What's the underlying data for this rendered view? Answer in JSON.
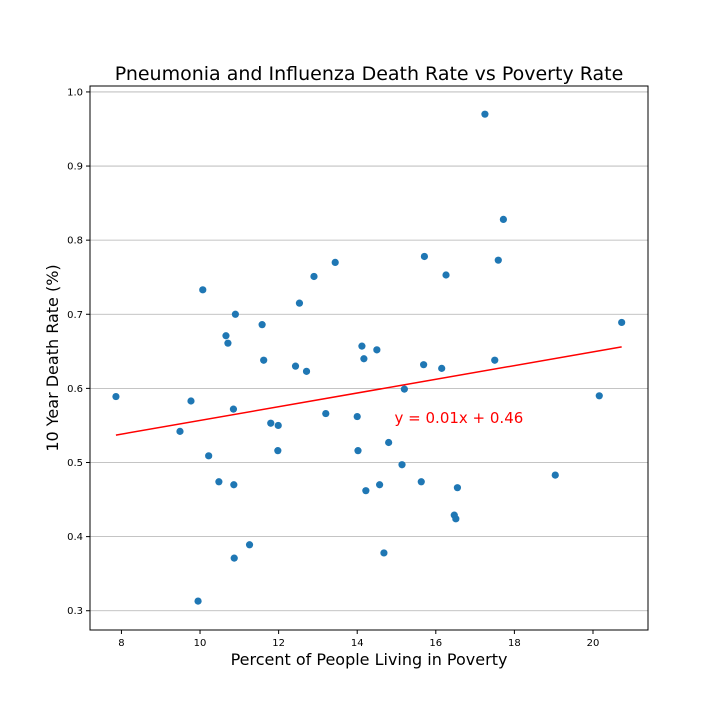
{
  "chart_data": {
    "type": "scatter",
    "title": "Pneumonia and Influenza Death Rate vs Poverty Rate",
    "xlabel": "Percent of People Living in Poverty",
    "ylabel": "10 Year Death Rate (%)",
    "xlim": [
      7.2,
      21.4
    ],
    "ylim": [
      0.274,
      1.008
    ],
    "xticks": [
      8,
      10,
      12,
      14,
      16,
      18,
      20
    ],
    "yticks": [
      0.3,
      0.4,
      0.5,
      0.6,
      0.7,
      0.8,
      0.9,
      1.0
    ],
    "xtick_labels": [
      "8",
      "10",
      "12",
      "14",
      "16",
      "18",
      "20"
    ],
    "ytick_labels": [
      "0.3",
      "0.4",
      "0.5",
      "0.6",
      "0.7",
      "0.8",
      "0.9",
      "1.0"
    ],
    "grid": "y",
    "point_color": "#1f77b4",
    "line_color": "#ff0000",
    "points": [
      [
        7.86,
        0.589
      ],
      [
        9.49,
        0.542
      ],
      [
        9.77,
        0.583
      ],
      [
        10.07,
        0.733
      ],
      [
        10.22,
        0.509
      ],
      [
        9.95,
        0.313
      ],
      [
        10.48,
        0.474
      ],
      [
        10.66,
        0.671
      ],
      [
        10.71,
        0.661
      ],
      [
        10.85,
        0.572
      ],
      [
        10.9,
        0.7
      ],
      [
        10.86,
        0.47
      ],
      [
        10.87,
        0.371
      ],
      [
        11.26,
        0.389
      ],
      [
        11.58,
        0.686
      ],
      [
        11.62,
        0.638
      ],
      [
        11.8,
        0.553
      ],
      [
        11.99,
        0.55
      ],
      [
        11.98,
        0.516
      ],
      [
        12.43,
        0.63
      ],
      [
        12.53,
        0.715
      ],
      [
        12.71,
        0.623
      ],
      [
        12.9,
        0.751
      ],
      [
        13.2,
        0.566
      ],
      [
        13.44,
        0.77
      ],
      [
        14.0,
        0.562
      ],
      [
        14.02,
        0.516
      ],
      [
        14.12,
        0.657
      ],
      [
        14.17,
        0.64
      ],
      [
        14.22,
        0.462
      ],
      [
        14.5,
        0.652
      ],
      [
        14.57,
        0.47
      ],
      [
        14.68,
        0.378
      ],
      [
        14.8,
        0.527
      ],
      [
        15.14,
        0.497
      ],
      [
        15.2,
        0.599
      ],
      [
        15.63,
        0.474
      ],
      [
        15.69,
        0.632
      ],
      [
        15.71,
        0.778
      ],
      [
        16.15,
        0.627
      ],
      [
        16.26,
        0.753
      ],
      [
        16.47,
        0.429
      ],
      [
        16.51,
        0.424
      ],
      [
        16.55,
        0.466
      ],
      [
        17.25,
        0.97
      ],
      [
        17.5,
        0.638
      ],
      [
        17.59,
        0.773
      ],
      [
        17.72,
        0.828
      ],
      [
        19.04,
        0.483
      ],
      [
        20.16,
        0.59
      ],
      [
        20.73,
        0.689
      ]
    ],
    "regression": {
      "x_start": 7.86,
      "x_end": 20.73,
      "y_start": 0.537,
      "y_end": 0.656,
      "equation_label": "y = 0.01x + 0.46",
      "label_x": 14.95,
      "label_y": 0.553
    }
  }
}
